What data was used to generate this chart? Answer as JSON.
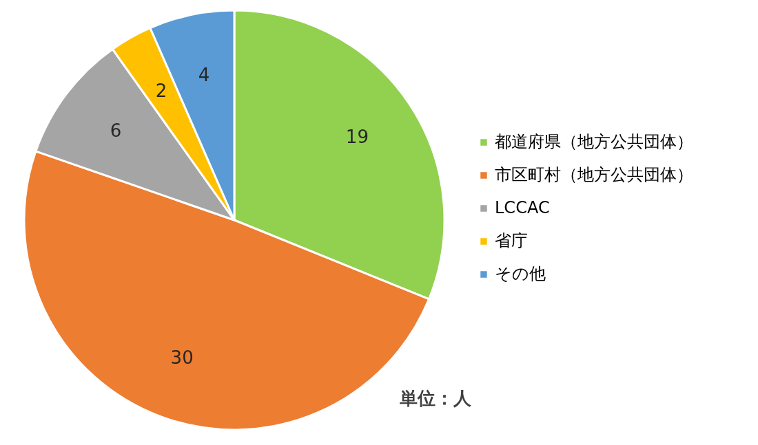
{
  "chart_data": {
    "type": "pie",
    "categories": [
      "都道府県（地方公共団体）",
      "市区町村（地方公共団体）",
      "LCCAC",
      "省庁",
      "その他"
    ],
    "values": [
      19,
      30,
      6,
      2,
      4
    ],
    "colors": [
      "#92d050",
      "#ed7d31",
      "#a5a5a5",
      "#ffc000",
      "#5b9bd5"
    ],
    "data_labels": true,
    "legend": "right",
    "annotations": [
      "単位：人"
    ]
  }
}
